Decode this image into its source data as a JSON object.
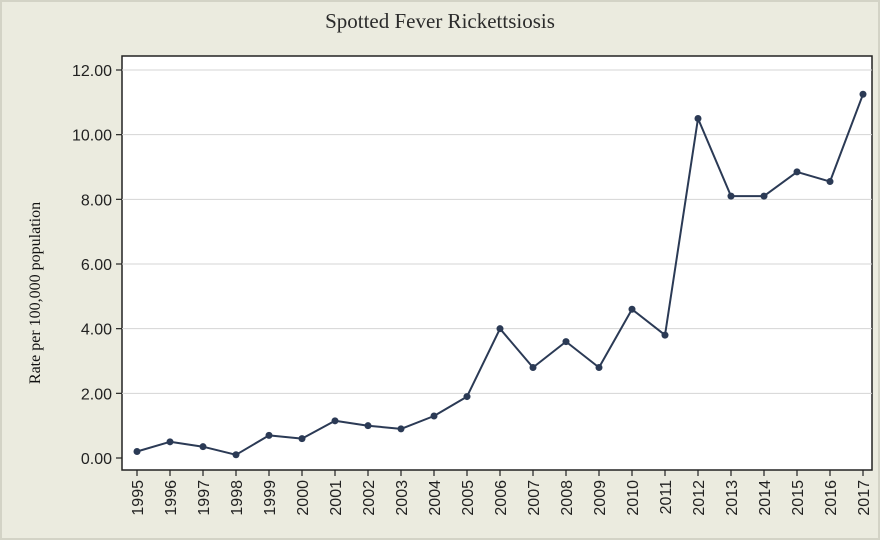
{
  "chart_data": {
    "type": "line",
    "title": "Spotted Fever Rickettsiosis",
    "xlabel": "",
    "ylabel": "Rate per 100,000 population",
    "ylim": [
      0,
      12.5
    ],
    "yticks": [
      0,
      2,
      4,
      6,
      8,
      10,
      12
    ],
    "ytick_labels": [
      "0.00",
      "2.00",
      "4.00",
      "6.00",
      "8.00",
      "10.00",
      "12.00"
    ],
    "grid": true,
    "colors": {
      "line": "#2b3a55",
      "grid": "#d4d4d4",
      "plot_bg": "#ffffff",
      "page_bg": "#ebebdf"
    },
    "x": [
      "1995",
      "1996",
      "1997",
      "1998",
      "1999",
      "2000",
      "2001",
      "2002",
      "2003",
      "2004",
      "2005",
      "2006",
      "2007",
      "2008",
      "2009",
      "2010",
      "2011",
      "2012",
      "2013",
      "2014",
      "2015",
      "2016",
      "2017"
    ],
    "series": [
      {
        "values": [
          0.2,
          0.5,
          0.35,
          0.1,
          0.7,
          0.6,
          1.15,
          1.0,
          0.9,
          1.3,
          1.9,
          4.0,
          2.8,
          3.6,
          2.8,
          4.6,
          3.8,
          10.5,
          8.1,
          8.1,
          8.85,
          8.55,
          11.25
        ]
      }
    ]
  }
}
